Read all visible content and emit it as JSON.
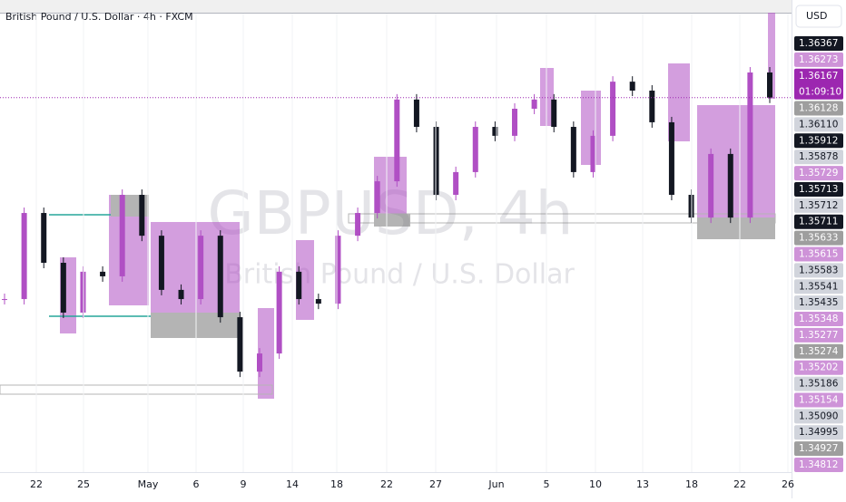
{
  "header": {
    "title": "British Pound / U.S. Dollar · 4h · FXCM",
    "currency": "USD"
  },
  "watermark": {
    "symbol": "GBPUSD, 4h",
    "name": "British Pound / U.S. Dollar"
  },
  "price_axis": {
    "scale_top": 1.36367,
    "scale_ref": 1.35711,
    "labels": [
      {
        "text": "1.36367",
        "bg": "#131722",
        "fg": "#ffffff"
      },
      {
        "text": "1.36273",
        "bg": "#ce93d8",
        "fg": "#ffffff"
      },
      {
        "text": "1.36167",
        "bg": "#9c27b0",
        "fg": "#ffffff"
      },
      {
        "text": "1.36128",
        "bg": "#9e9e9e",
        "fg": "#ffffff"
      },
      {
        "text": "1.36110",
        "bg": "#d1d4dc",
        "fg": "#131722"
      },
      {
        "text": "1.35912",
        "bg": "#131722",
        "fg": "#ffffff"
      },
      {
        "text": "1.35878",
        "bg": "#d1d4dc",
        "fg": "#131722"
      },
      {
        "text": "1.35729",
        "bg": "#ce93d8",
        "fg": "#ffffff"
      },
      {
        "text": "1.35713",
        "bg": "#131722",
        "fg": "#ffffff"
      },
      {
        "text": "1.35712",
        "bg": "#d1d4dc",
        "fg": "#131722"
      },
      {
        "text": "1.35711",
        "bg": "#131722",
        "fg": "#ffffff"
      },
      {
        "text": "1.35633",
        "bg": "#9e9e9e",
        "fg": "#ffffff"
      },
      {
        "text": "1.35615",
        "bg": "#ce93d8",
        "fg": "#ffffff"
      },
      {
        "text": "1.35583",
        "bg": "#d1d4dc",
        "fg": "#131722"
      },
      {
        "text": "1.35541",
        "bg": "#d1d4dc",
        "fg": "#131722"
      },
      {
        "text": "1.35435",
        "bg": "#d1d4dc",
        "fg": "#131722"
      },
      {
        "text": "1.35348",
        "bg": "#ce93d8",
        "fg": "#ffffff"
      },
      {
        "text": "1.35277",
        "bg": "#ce93d8",
        "fg": "#ffffff"
      },
      {
        "text": "1.35274",
        "bg": "#9e9e9e",
        "fg": "#ffffff"
      },
      {
        "text": "1.35202",
        "bg": "#ce93d8",
        "fg": "#ffffff"
      },
      {
        "text": "1.35186",
        "bg": "#d1d4dc",
        "fg": "#131722"
      },
      {
        "text": "1.35154",
        "bg": "#ce93d8",
        "fg": "#ffffff"
      },
      {
        "text": "1.35090",
        "bg": "#d1d4dc",
        "fg": "#131722"
      },
      {
        "text": "1.34995",
        "bg": "#d1d4dc",
        "fg": "#131722"
      },
      {
        "text": "1.34927",
        "bg": "#9e9e9e",
        "fg": "#ffffff"
      },
      {
        "text": "1.34812",
        "bg": "#ce93d8",
        "fg": "#ffffff"
      }
    ],
    "current_index": 2,
    "countdown": "01:09:10"
  },
  "time_axis": [
    "22",
    "25",
    "May",
    "6",
    "9",
    "14",
    "18",
    "22",
    "27",
    "Jun",
    "5",
    "10",
    "13",
    "18",
    "22",
    "26"
  ],
  "closes": [
    1.35423,
    1.35741,
    1.35557,
    1.35373,
    1.35524,
    1.35507,
    1.35808,
    1.35657,
    1.35457,
    1.35423,
    1.35657,
    1.35356,
    1.35155,
    1.35222,
    1.35524,
    1.35423,
    1.35406,
    1.35657,
    1.35741,
    1.35858,
    1.3616,
    1.36059,
    1.35808,
    1.35892,
    1.36059,
    1.36026,
    1.36126,
    1.3616,
    1.36059,
    1.35892,
    1.36026,
    1.36226,
    1.36193,
    1.36076,
    1.35808,
    1.35724,
    1.35959,
    1.35724,
    1.3626,
    1.36167
  ]
}
